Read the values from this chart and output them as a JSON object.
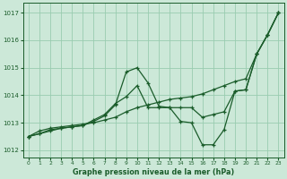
{
  "title": "Graphe pression niveau de la mer (hPa)",
  "background_color": "#cce8d8",
  "grid_color": "#99ccb0",
  "line_color": "#1a5c2a",
  "xlim": [
    -0.5,
    23.5
  ],
  "ylim": [
    1011.75,
    1017.35
  ],
  "yticks": [
    1012,
    1013,
    1014,
    1015,
    1016,
    1017
  ],
  "xticks": [
    0,
    1,
    2,
    3,
    4,
    5,
    6,
    7,
    8,
    9,
    10,
    11,
    12,
    13,
    14,
    15,
    16,
    17,
    18,
    19,
    20,
    21,
    22,
    23
  ],
  "series": [
    {
      "x": [
        0,
        1,
        2,
        3,
        4,
        5,
        6,
        7,
        8,
        9,
        10,
        11,
        12,
        13,
        14,
        15,
        16,
        17,
        18,
        19,
        20,
        21,
        22,
        23
      ],
      "y": [
        1012.5,
        1012.7,
        1012.8,
        1012.85,
        1012.9,
        1012.95,
        1013.0,
        1013.1,
        1013.2,
        1013.4,
        1013.55,
        1013.65,
        1013.75,
        1013.85,
        1013.9,
        1013.95,
        1014.05,
        1014.2,
        1014.35,
        1014.5,
        1014.6,
        1015.5,
        1016.2,
        1017.0
      ]
    },
    {
      "x": [
        0,
        1,
        2,
        3,
        4,
        5,
        6,
        7,
        8,
        9,
        10,
        11,
        12,
        13,
        14,
        15,
        16,
        17,
        18,
        19,
        20,
        21,
        22,
        23
      ],
      "y": [
        1012.5,
        1012.6,
        1012.7,
        1012.8,
        1012.85,
        1012.9,
        1013.05,
        1013.25,
        1013.65,
        1014.85,
        1015.0,
        1014.45,
        1013.6,
        1013.55,
        1013.05,
        1013.0,
        1012.2,
        1012.2,
        1012.75,
        1014.15,
        1014.2,
        1015.5,
        1016.2,
        1017.0
      ]
    },
    {
      "x": [
        0,
        1,
        2,
        3,
        4,
        5,
        6,
        7,
        8,
        9,
        10,
        11,
        12,
        13,
        14,
        15,
        16,
        17,
        18,
        19,
        20,
        21,
        22,
        23
      ],
      "y": [
        1012.5,
        1012.6,
        1012.75,
        1012.8,
        1012.85,
        1012.9,
        1013.1,
        1013.3,
        1013.7,
        1013.95,
        1014.35,
        1013.55,
        1013.55,
        1013.55,
        1013.55,
        1013.55,
        1013.2,
        1013.3,
        1013.4,
        1014.15,
        1014.2,
        1015.5,
        1016.2,
        1017.0
      ]
    }
  ]
}
